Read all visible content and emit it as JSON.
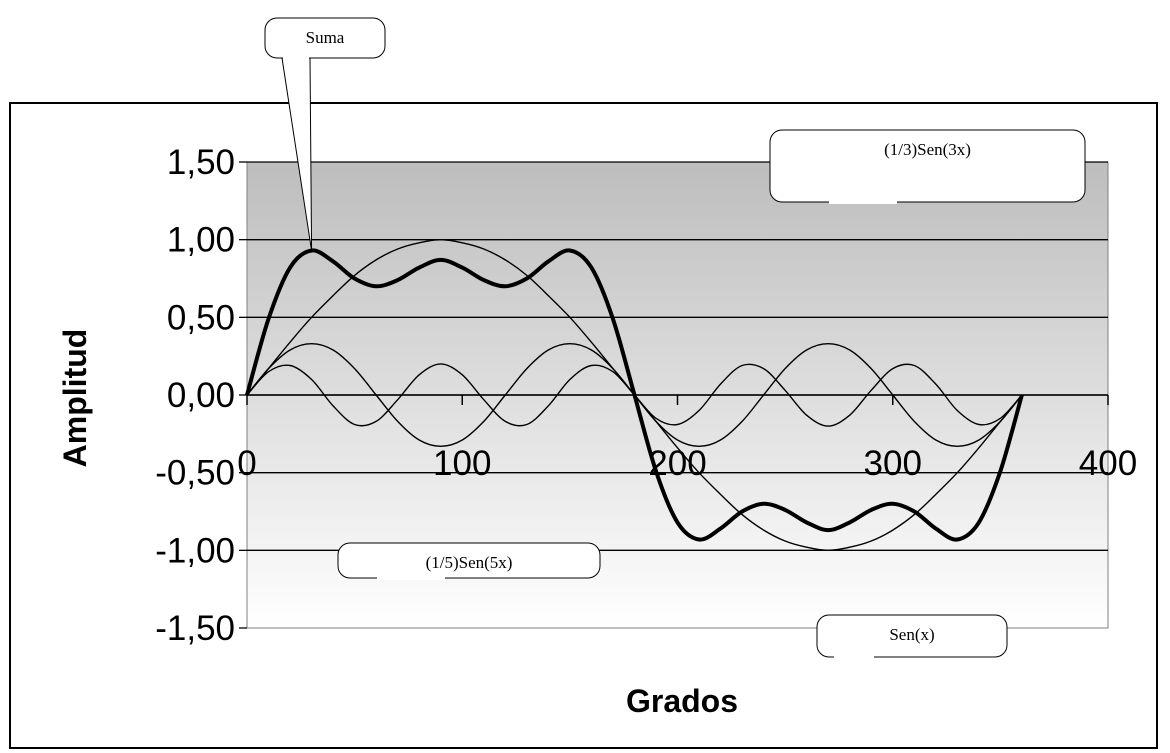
{
  "chart_data": {
    "type": "line",
    "xlabel": "Grados",
    "ylabel": "Amplitud",
    "xlim": [
      0,
      400
    ],
    "ylim": [
      -1.5,
      1.5
    ],
    "x_ticks": [
      0,
      100,
      200,
      300,
      400
    ],
    "x_tick_labels": [
      "0",
      "100",
      "200",
      "300",
      "400"
    ],
    "y_ticks": [
      1.5,
      1.0,
      0.5,
      0.0,
      -0.5,
      -1.0,
      -1.5
    ],
    "y_tick_labels": [
      "1,50",
      "1,00",
      "0,50",
      "0,00",
      "-0,50",
      "-1,00",
      "-1,50"
    ],
    "grid": "horizontal",
    "x": [
      0,
      10,
      20,
      30,
      40,
      50,
      60,
      70,
      80,
      90,
      100,
      110,
      120,
      130,
      140,
      150,
      160,
      170,
      180,
      190,
      200,
      210,
      220,
      230,
      240,
      250,
      260,
      270,
      280,
      290,
      300,
      310,
      320,
      330,
      340,
      350,
      360
    ],
    "series": [
      {
        "name": "Sen(x)",
        "values": [
          0,
          0.17,
          0.34,
          0.5,
          0.64,
          0.77,
          0.87,
          0.94,
          0.98,
          1,
          0.98,
          0.94,
          0.87,
          0.77,
          0.64,
          0.5,
          0.34,
          0.17,
          0,
          -0.17,
          -0.34,
          -0.5,
          -0.64,
          -0.77,
          -0.87,
          -0.94,
          -0.98,
          -1,
          -0.98,
          -0.94,
          -0.87,
          -0.77,
          -0.64,
          -0.5,
          -0.34,
          -0.17,
          0
        ]
      },
      {
        "name": "(1/3)Sen(3x)",
        "values": [
          0,
          0.17,
          0.29,
          0.33,
          0.29,
          0.17,
          0,
          -0.17,
          -0.29,
          -0.33,
          -0.29,
          -0.17,
          0,
          0.17,
          0.29,
          0.33,
          0.29,
          0.17,
          0,
          -0.17,
          -0.29,
          -0.33,
          -0.29,
          -0.17,
          0,
          0.17,
          0.29,
          0.33,
          0.29,
          0.17,
          0,
          -0.17,
          -0.29,
          -0.33,
          -0.29,
          -0.17,
          0
        ]
      },
      {
        "name": "(1/5)Sen(5x)",
        "values": [
          0,
          0.15,
          0.19,
          0.1,
          -0.07,
          -0.19,
          -0.17,
          -0.03,
          0.13,
          0.2,
          0.13,
          -0.03,
          -0.17,
          -0.19,
          -0.07,
          0.1,
          0.19,
          0.15,
          0,
          -0.15,
          -0.19,
          -0.1,
          0.07,
          0.19,
          0.17,
          0.03,
          -0.13,
          -0.2,
          -0.13,
          0.03,
          0.17,
          0.19,
          0.07,
          -0.1,
          -0.19,
          -0.15,
          0
        ]
      },
      {
        "name": "Suma",
        "values": [
          0,
          0.49,
          0.82,
          0.93,
          0.86,
          0.75,
          0.7,
          0.74,
          0.82,
          0.87,
          0.82,
          0.74,
          0.7,
          0.75,
          0.86,
          0.93,
          0.82,
          0.49,
          0,
          -0.49,
          -0.82,
          -0.93,
          -0.86,
          -0.75,
          -0.7,
          -0.74,
          -0.82,
          -0.87,
          -0.82,
          -0.74,
          -0.7,
          -0.75,
          -0.86,
          -0.93,
          -0.82,
          -0.49,
          0
        ]
      }
    ],
    "annotations": [
      {
        "text": "Suma",
        "series": "Suma",
        "x": 30
      },
      {
        "text": "(1/3)Sen(3x)",
        "series": "(1/3)Sen(3x)",
        "x": 266
      },
      {
        "text": "(1/5)Sen(5x)",
        "series": "(1/5)Sen(5x)",
        "x": 56
      },
      {
        "text": "Sen(x)",
        "series": "Sen(x)",
        "x": 252
      }
    ]
  }
}
